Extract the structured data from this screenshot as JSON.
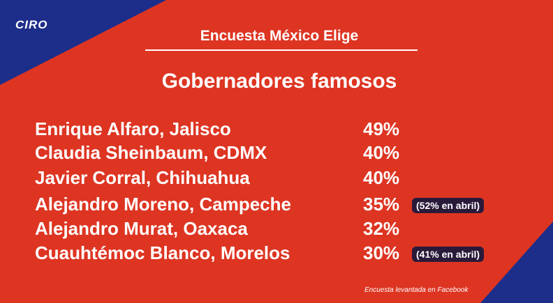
{
  "header": {
    "logo": "CIRO",
    "title": "Encuesta México Elige",
    "subtitle": "Gobernadores famosos"
  },
  "table": {
    "rows": [
      {
        "name": "Enrique Alfaro, Jalisco",
        "percent": "49%"
      },
      {
        "name": "Claudia Sheinbaum, CDMX",
        "percent": "40%"
      },
      {
        "name": "Javier Corral, Chihuahua",
        "percent": "40%"
      },
      {
        "name": "Alejandro Moreno, Campeche",
        "percent": "35%",
        "note": "(52% en abril)"
      },
      {
        "name": "Alejandro Murat, Oaxaca",
        "percent": "32%"
      },
      {
        "name": "Cuauhtémoc Blanco, Morelos",
        "percent": "30%",
        "note": "(41% en abril)"
      }
    ]
  },
  "footer": {
    "source": "Encuesta levantada en Facebook"
  }
}
